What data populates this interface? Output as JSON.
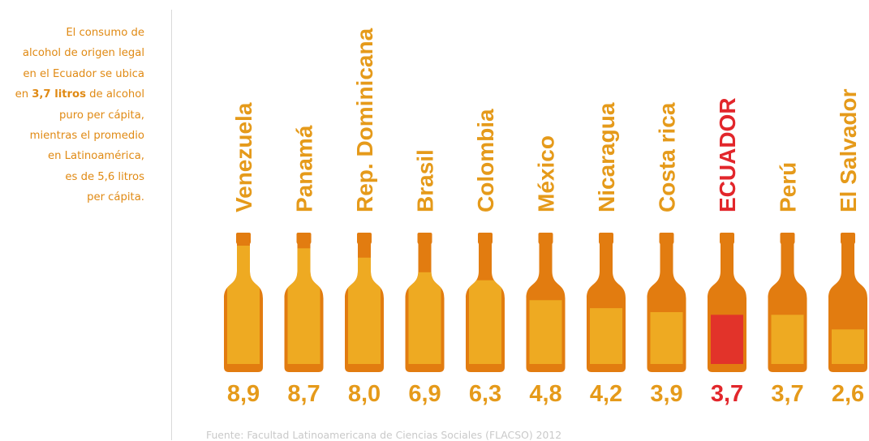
{
  "intro": {
    "line1": "El consumo de",
    "line2": "alcohol de origen legal",
    "line3": "en el Ecuador se ubica",
    "line4_prefix": "en ",
    "line4_bold": "3,7 litros",
    "line4_suffix": " de alcohol",
    "line5": "puro per cápita,",
    "line6": "mientras el promedio",
    "line7": "en Latinoamérica,",
    "line8": "es de 5,6 litros",
    "line9": "per cápita."
  },
  "source": "Fuente: Facultad Latinoamericana de Ciencias Sociales (FLACSO) 2012",
  "colors": {
    "label": "#e59a1a",
    "bottle_dark": "#e27c10",
    "bottle_fill": "#eeaa22",
    "highlight_text": "#e2262b",
    "highlight_fill": "#e2332a"
  },
  "chart_data": {
    "type": "bar",
    "categories": [
      "Venezuela",
      "Panamá",
      "Rep. Dominicana",
      "Brasil",
      "Colombia",
      "México",
      "Nicaragua",
      "Costa rica",
      "ECUADOR",
      "Perú",
      "El Salvador"
    ],
    "values": [
      8.9,
      8.7,
      8.0,
      6.9,
      6.3,
      4.8,
      4.2,
      3.9,
      3.7,
      3.7,
      2.6
    ],
    "value_labels": [
      "8,9",
      "8,7",
      "8,0",
      "6,9",
      "6,3",
      "4,8",
      "4,2",
      "3,9",
      "3,7",
      "3,7",
      "2,6"
    ],
    "highlight": "ECUADOR",
    "ylim": [
      0,
      10
    ],
    "grid": false,
    "legend": "none"
  }
}
